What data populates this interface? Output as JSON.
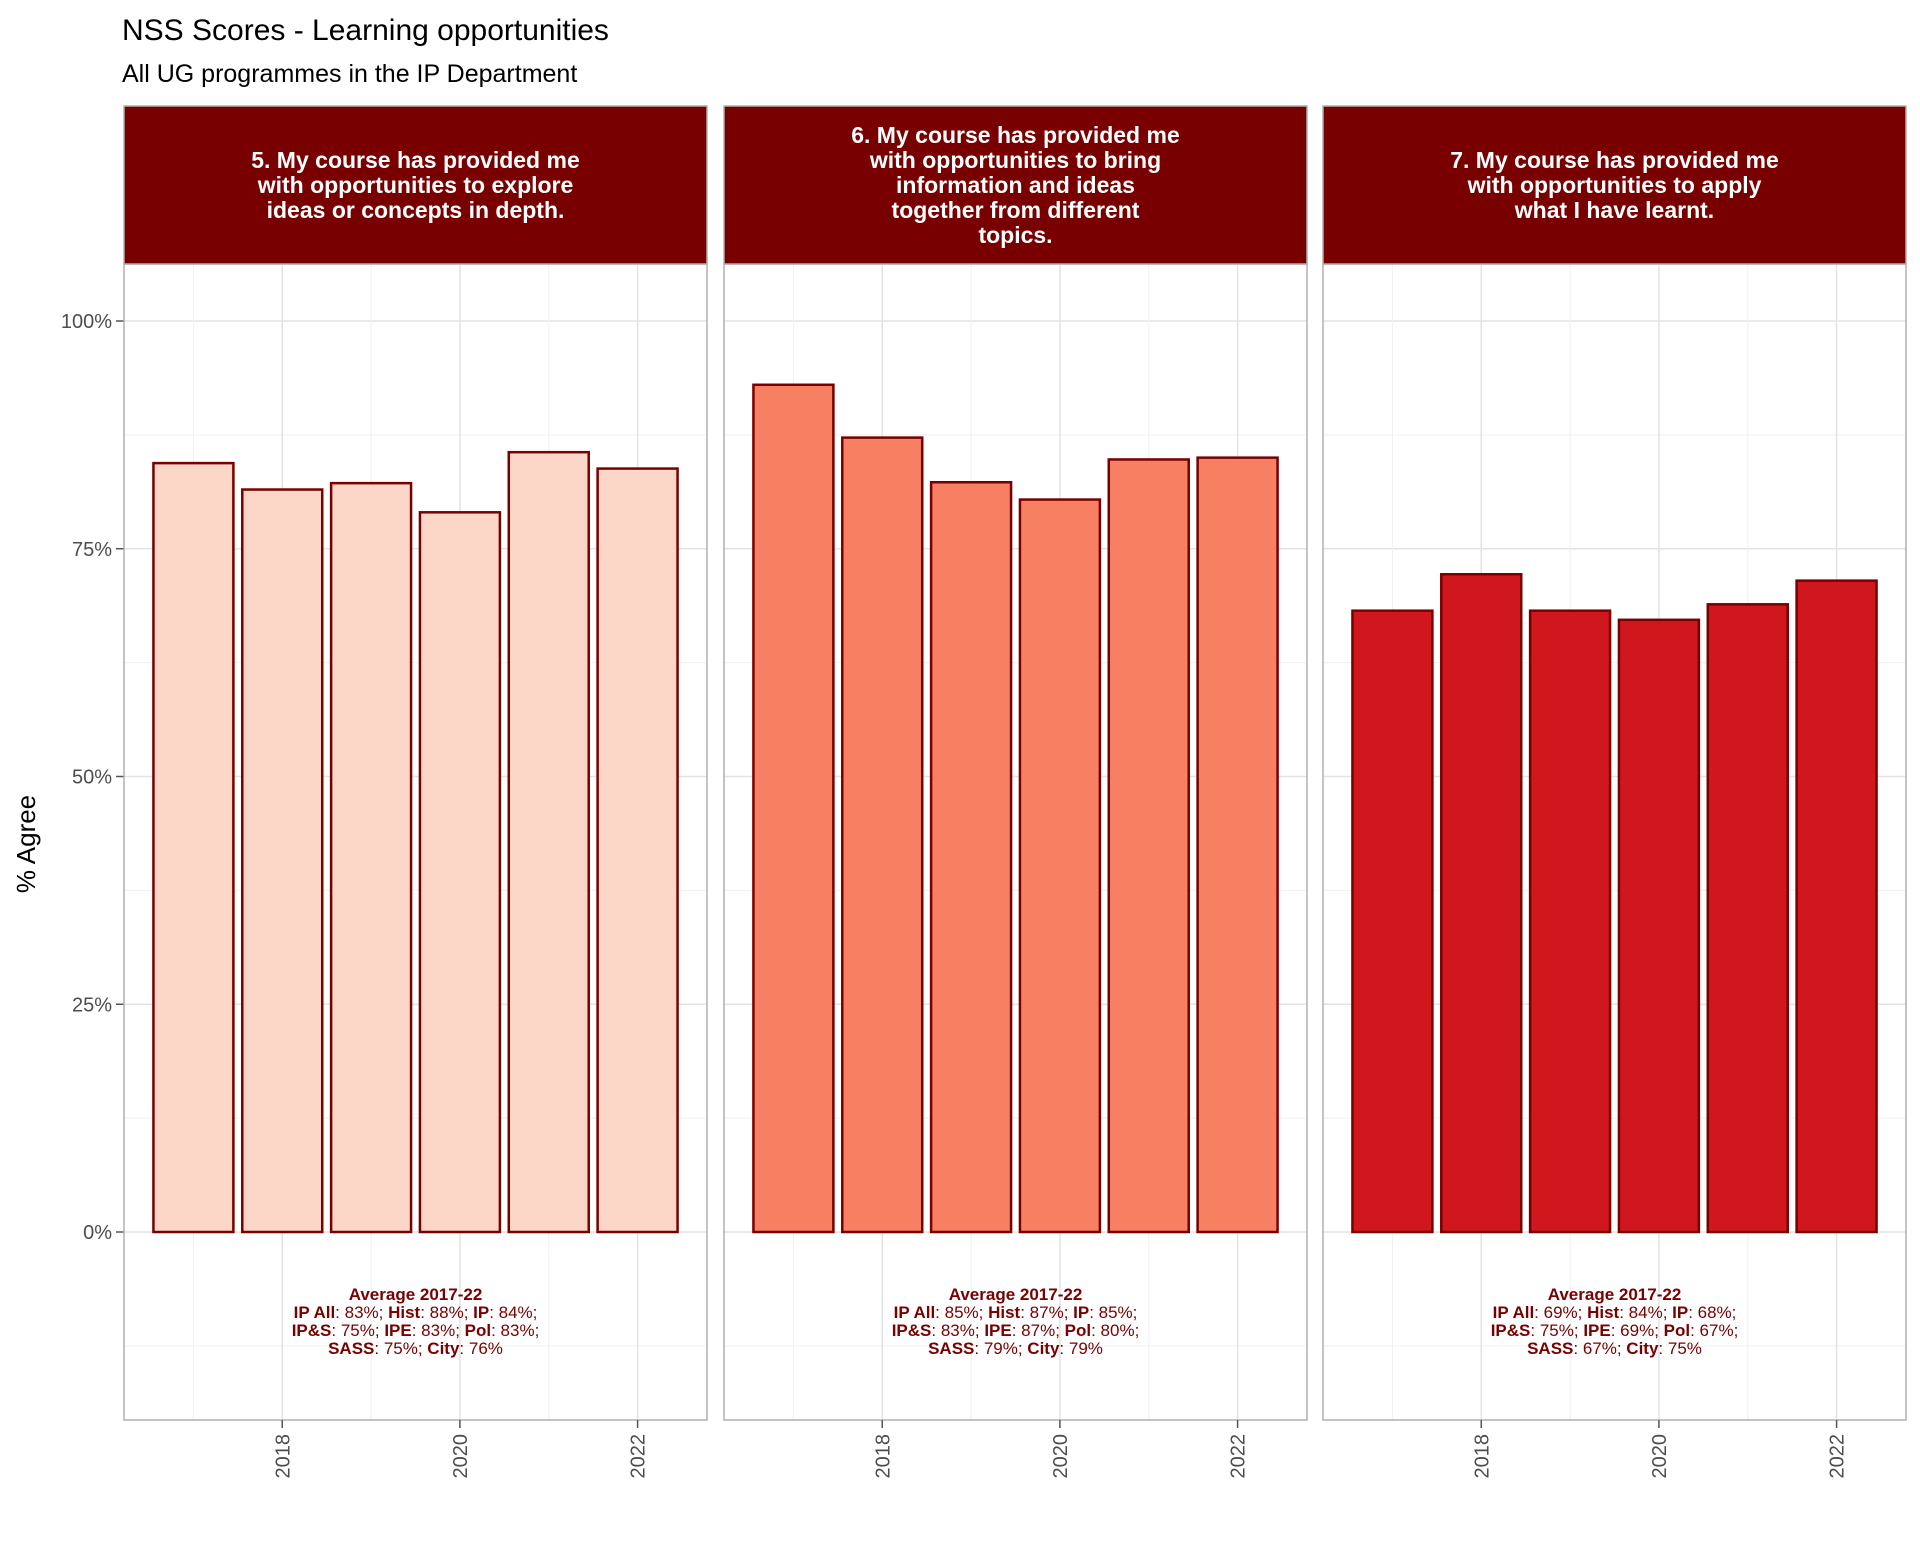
{
  "title": "NSS Scores - Learning opportunities",
  "subtitle": "All UG programmes in the IP Department",
  "ylabel": "% Agree",
  "colors": {
    "strip_bg": "#780000",
    "strip_text": "#ffffff",
    "bar_outline": "#780000",
    "annotation_text": "#780000",
    "grid": "#e3e3e3",
    "panel_border": "#b0b0b0",
    "axis_text": "#4d4d4d"
  },
  "chart_data": {
    "type": "bar",
    "facets": 3,
    "x": [
      2017,
      2018,
      2019,
      2020,
      2021,
      2022
    ],
    "xticks": [
      2018,
      2020,
      2022
    ],
    "ylim": [
      -0.2,
      1.06
    ],
    "yticks": [
      0,
      0.25,
      0.5,
      0.75,
      1.0
    ],
    "ytick_labels": [
      "0%",
      "25%",
      "50%",
      "75%",
      "100%"
    ],
    "grid": true,
    "panels": [
      {
        "strip_label": "5. My course has provided me\nwith opportunities to explore\nideas or concepts in depth.",
        "fill": "#fcd7c8",
        "values": [
          0.844,
          0.815,
          0.822,
          0.79,
          0.856,
          0.838
        ],
        "annotation": [
          [
            {
              "t": "Average 2017-22",
              "b": true
            }
          ],
          [
            {
              "t": "IP All",
              "b": true
            },
            {
              "t": ": 83%; "
            },
            {
              "t": "Hist",
              "b": true
            },
            {
              "t": ": 88%; "
            },
            {
              "t": "IP",
              "b": true
            },
            {
              "t": ": 84%;"
            }
          ],
          [
            {
              "t": "IP&S",
              "b": true
            },
            {
              "t": ": 75%; "
            },
            {
              "t": "IPE",
              "b": true
            },
            {
              "t": ": 83%; "
            },
            {
              "t": "Pol",
              "b": true
            },
            {
              "t": ": 83%;"
            }
          ],
          [
            {
              "t": "SASS",
              "b": true
            },
            {
              "t": ": 75%; "
            },
            {
              "t": "City",
              "b": true
            },
            {
              "t": ": 76%"
            }
          ]
        ]
      },
      {
        "strip_label": "6. My course has provided me\nwith opportunities to bring\ninformation and ideas\ntogether from different\ntopics.",
        "fill": "#f88062",
        "values": [
          0.93,
          0.872,
          0.823,
          0.804,
          0.848,
          0.85
        ],
        "annotation": [
          [
            {
              "t": "Average 2017-22",
              "b": true
            }
          ],
          [
            {
              "t": "IP All",
              "b": true
            },
            {
              "t": ": 85%; "
            },
            {
              "t": "Hist",
              "b": true
            },
            {
              "t": ": 87%; "
            },
            {
              "t": "IP",
              "b": true
            },
            {
              "t": ": 85%;"
            }
          ],
          [
            {
              "t": "IP&S",
              "b": true
            },
            {
              "t": ": 83%; "
            },
            {
              "t": "IPE",
              "b": true
            },
            {
              "t": ": 87%; "
            },
            {
              "t": "Pol",
              "b": true
            },
            {
              "t": ": 80%;"
            }
          ],
          [
            {
              "t": "SASS",
              "b": true
            },
            {
              "t": ": 79%; "
            },
            {
              "t": "City",
              "b": true
            },
            {
              "t": ": 79%"
            }
          ]
        ]
      },
      {
        "strip_label": "7. My course has provided me\nwith opportunities to apply\nwhat I have learnt.",
        "fill": "#d0171e",
        "values": [
          0.682,
          0.722,
          0.682,
          0.672,
          0.689,
          0.715
        ],
        "annotation": [
          [
            {
              "t": "Average 2017-22",
              "b": true
            }
          ],
          [
            {
              "t": "IP All",
              "b": true
            },
            {
              "t": ": 69%; "
            },
            {
              "t": "Hist",
              "b": true
            },
            {
              "t": ": 84%; "
            },
            {
              "t": "IP",
              "b": true
            },
            {
              "t": ": 68%;"
            }
          ],
          [
            {
              "t": "IP&S",
              "b": true
            },
            {
              "t": ": 75%; "
            },
            {
              "t": "IPE",
              "b": true
            },
            {
              "t": ": 69%; "
            },
            {
              "t": "Pol",
              "b": true
            },
            {
              "t": ": 67%;"
            }
          ],
          [
            {
              "t": "SASS",
              "b": true
            },
            {
              "t": ": 67%; "
            },
            {
              "t": "City",
              "b": true
            },
            {
              "t": ": 75%"
            }
          ]
        ]
      }
    ]
  }
}
